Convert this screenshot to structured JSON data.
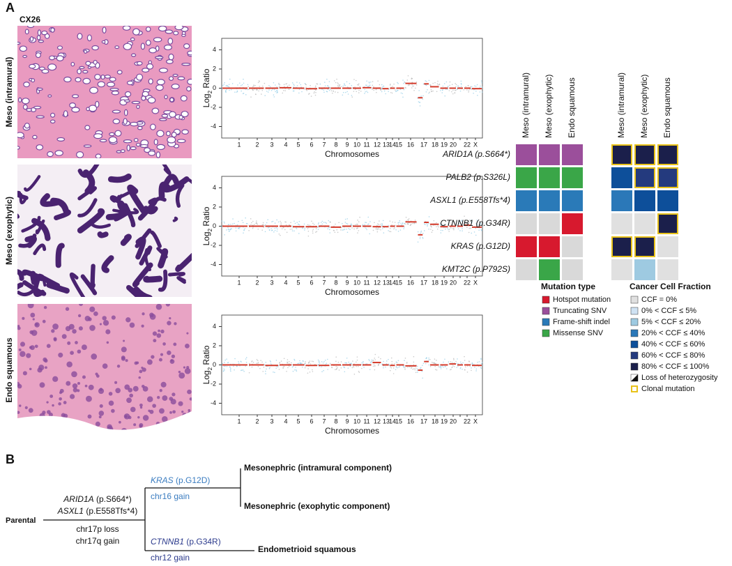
{
  "panel_a": {
    "label": "A",
    "case": "CX26",
    "samples": [
      "Meso (intramural)",
      "Meso (exophytic)",
      "Endo squamous"
    ]
  },
  "chart_data": [
    {
      "type": "segment",
      "ylabel_parts": [
        "Log",
        "2",
        " Ratio"
      ],
      "xlabel": "Chromosomes",
      "categories": [
        "1",
        "2",
        "3",
        "4",
        "5",
        "6",
        "7",
        "8",
        "9",
        "10",
        "11",
        "12",
        "13",
        "14",
        "15",
        "16",
        "17",
        "18",
        "19",
        "20",
        null,
        "22",
        "X"
      ],
      "ylim": [
        -5.2,
        5.2
      ],
      "yticks": [
        4,
        2,
        0,
        -2,
        -4
      ],
      "segment_color": "#d43a2a",
      "segments": [
        [
          0
        ],
        [
          0
        ],
        [
          0
        ],
        [
          0.05
        ],
        [
          0
        ],
        [
          -0.05
        ],
        [
          0
        ],
        [
          0
        ],
        [
          0
        ],
        [
          0
        ],
        [
          0.05
        ],
        [
          0
        ],
        [
          -0.05
        ],
        [
          0
        ],
        [
          0
        ],
        [
          0.5
        ],
        [
          -1.0,
          0.45
        ],
        [
          0.15
        ],
        [
          0
        ],
        [
          0
        ],
        [
          0
        ],
        [
          0
        ],
        [
          -0.05
        ]
      ]
    },
    {
      "type": "segment",
      "ylabel_parts": [
        "Log",
        "2",
        " Ratio"
      ],
      "xlabel": "Chromosomes",
      "categories": [
        "1",
        "2",
        "3",
        "4",
        "5",
        "6",
        "7",
        "8",
        "9",
        "10",
        "11",
        "12",
        "13",
        "14",
        "15",
        "16",
        "17",
        "18",
        "19",
        "20",
        null,
        "22",
        "X"
      ],
      "ylim": [
        -5.2,
        5.2
      ],
      "yticks": [
        4,
        2,
        0,
        -2,
        -4
      ],
      "segment_color": "#d43a2a",
      "segments": [
        [
          0
        ],
        [
          0
        ],
        [
          0
        ],
        [
          0
        ],
        [
          -0.05
        ],
        [
          -0.05
        ],
        [
          0
        ],
        [
          -0.1
        ],
        [
          0
        ],
        [
          0
        ],
        [
          0
        ],
        [
          -0.05
        ],
        [
          -0.05
        ],
        [
          0
        ],
        [
          0
        ],
        [
          0.45
        ],
        [
          -0.9,
          0.4
        ],
        [
          0.2
        ],
        [
          -0.05
        ],
        [
          0
        ],
        [
          0
        ],
        [
          0.1
        ],
        [
          -0.1
        ]
      ]
    },
    {
      "type": "segment",
      "ylabel_parts": [
        "Log",
        "2",
        " Ratio"
      ],
      "xlabel": "Chromosomes",
      "categories": [
        "1",
        "2",
        "3",
        "4",
        "5",
        "6",
        "7",
        "8",
        "9",
        "10",
        "11",
        "12",
        "13",
        "14",
        "15",
        "16",
        "17",
        "18",
        "19",
        "20",
        null,
        "22",
        "X"
      ],
      "ylim": [
        -5.2,
        5.2
      ],
      "yticks": [
        4,
        2,
        0,
        -2,
        -4
      ],
      "segment_color": "#d43a2a",
      "segments": [
        [
          0
        ],
        [
          0
        ],
        [
          -0.05
        ],
        [
          0
        ],
        [
          0
        ],
        [
          -0.05
        ],
        [
          -0.05
        ],
        [
          0
        ],
        [
          0
        ],
        [
          0
        ],
        [
          0
        ],
        [
          0.25
        ],
        [
          0
        ],
        [
          -0.05
        ],
        [
          0
        ],
        [
          -0.1
        ],
        [
          -0.55,
          0.35
        ],
        [
          0
        ],
        [
          0
        ],
        [
          0.1
        ],
        [
          0
        ],
        [
          0
        ],
        [
          -0.05
        ]
      ]
    }
  ],
  "heatmap": {
    "rows": [
      "ARID1A (p.S664*)",
      "PALB2 (p.S326L)",
      "ASXL1 (p.E558Tfs*4)",
      "CTNNB1 (p.G34R)",
      "KRAS (p.G12D)",
      "KMT2C (p.P792S)"
    ],
    "none_color": "#d9d9d9",
    "mutation_type": [
      [
        "Truncating SNV",
        "Truncating SNV",
        "Truncating SNV"
      ],
      [
        "Missense SNV",
        "Missense SNV",
        "Missense SNV"
      ],
      [
        "Frame-shift indel",
        "Frame-shift indel",
        "Frame-shift indel"
      ],
      [
        null,
        null,
        "Hotspot mutation"
      ],
      [
        "Hotspot mutation",
        "Hotspot mutation",
        null
      ],
      [
        null,
        "Missense SNV",
        null
      ]
    ],
    "ccf": [
      [
        90,
        90,
        90
      ],
      [
        50,
        70,
        70
      ],
      [
        30,
        50,
        50
      ],
      [
        0,
        0,
        90
      ],
      [
        90,
        90,
        0
      ],
      [
        0,
        10,
        0
      ]
    ],
    "clonal": [
      [
        true,
        true,
        true
      ],
      [
        false,
        true,
        true
      ],
      [
        false,
        false,
        false
      ],
      [
        false,
        false,
        true
      ],
      [
        true,
        true,
        false
      ],
      [
        false,
        false,
        false
      ]
    ],
    "mutation_legend": {
      "title": "Mutation type",
      "items": [
        {
          "label": "Hotspot mutation",
          "color": "#d7192e"
        },
        {
          "label": "Truncating SNV",
          "color": "#9b4f9b"
        },
        {
          "label": "Frame-shift indel",
          "color": "#2a7ab8"
        },
        {
          "label": "Missense SNV",
          "color": "#3aa648"
        }
      ]
    },
    "ccf_legend": {
      "title": "Cancer Cell Fraction",
      "items": [
        {
          "label": "CCF = 0%",
          "color": "#e0e0e0",
          "max": 0
        },
        {
          "label": "0% < CCF ≤  5%",
          "color": "#cfe2f3",
          "max": 5
        },
        {
          "label": "5% < CCF ≤  20%",
          "color": "#9ecae1",
          "max": 20
        },
        {
          "label": "20% < CCF ≤  40%",
          "color": "#2b78b8",
          "max": 40
        },
        {
          "label": "40% < CCF ≤  60%",
          "color": "#0d4f9a",
          "max": 60
        },
        {
          "label": "60% < CCF ≤  80%",
          "color": "#243a7e",
          "max": 80
        },
        {
          "label": "80% < CCF ≤  100%",
          "color": "#1b1f4b",
          "max": 100
        }
      ],
      "loh": "Loss of heterozygosity",
      "clonal": {
        "label": "Clonal mutation",
        "color": "#e8c21a"
      }
    }
  },
  "panel_b": {
    "label": "B",
    "root": "Parental",
    "trunk": {
      "mutations": [
        {
          "gene": "ARID1A",
          "change": " (p.S664*)"
        },
        {
          "gene": "ASXL1",
          "change": " (p.E558Tfs*4)"
        }
      ],
      "cna": [
        "chr17p loss",
        "chr17q gain"
      ]
    },
    "meso_branch": {
      "mutation": {
        "gene": "KRAS",
        "change": " (p.G12D)"
      },
      "cna": "chr16 gain",
      "color": "#3a7cc0",
      "leaves": [
        "Mesonephric (intramural component)",
        "Mesonephric (exophytic component)"
      ]
    },
    "endo_branch": {
      "mutation": {
        "gene": "CTNNB1",
        "change": " (p.G34R)"
      },
      "cna": "chr12 gain",
      "color": "#2b3a8c",
      "leaf": "Endometrioid squamous"
    }
  }
}
